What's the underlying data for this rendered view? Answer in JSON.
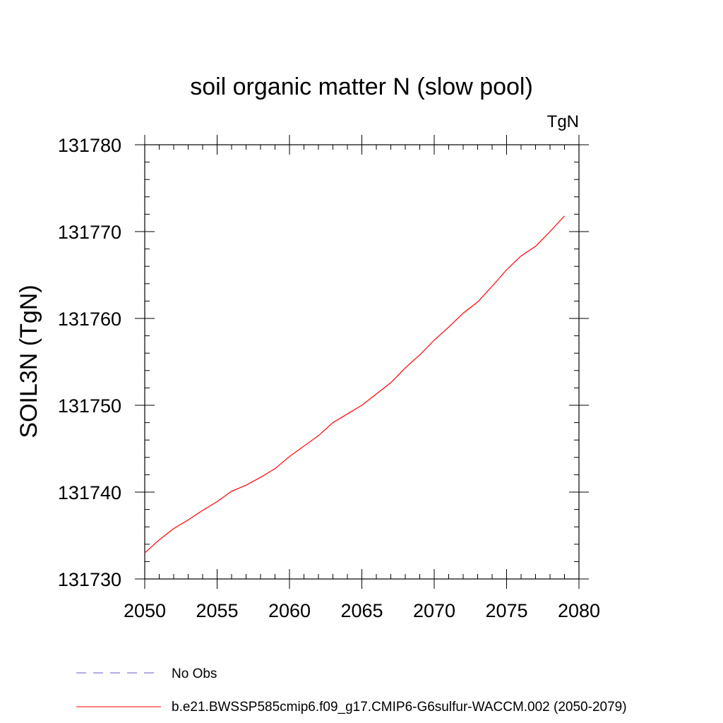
{
  "chart_data": {
    "type": "line",
    "title": "soil organic matter N (slow pool)",
    "units_label": "TgN",
    "ylabel": "SOIL3N  (TgN)",
    "xlabel": "",
    "xlim": [
      2050,
      2080
    ],
    "ylim": [
      131730,
      131780
    ],
    "x_ticks": [
      2050,
      2055,
      2060,
      2065,
      2070,
      2075,
      2080
    ],
    "y_ticks": [
      131730,
      131740,
      131750,
      131760,
      131770,
      131780
    ],
    "x_tick_labels": [
      "2050",
      "2055",
      "2060",
      "2065",
      "2070",
      "2075",
      "2080"
    ],
    "y_tick_labels": [
      "131730",
      "131740",
      "131750",
      "131760",
      "131770",
      "131780"
    ],
    "grid": false,
    "legend_position": "bottom",
    "series": [
      {
        "name": "No Obs",
        "color": "#6a5acd",
        "dash": "dashed",
        "x": [],
        "y": []
      },
      {
        "name": "b.e21.BWSSP585cmip6.f09_g17.CMIP6-G6sulfur-WACCM.002 (2050-2079)",
        "color": "#ff0000",
        "dash": "solid",
        "x": [
          2050,
          2051,
          2052,
          2053,
          2054,
          2055,
          2056,
          2057,
          2058,
          2059,
          2060,
          2061,
          2062,
          2063,
          2064,
          2065,
          2066,
          2067,
          2068,
          2069,
          2070,
          2071,
          2072,
          2073,
          2074,
          2075,
          2076,
          2077,
          2078,
          2079
        ],
        "y": [
          131733.0,
          131734.5,
          131735.8,
          131736.8,
          131737.9,
          131738.9,
          131740.1,
          131740.8,
          131741.7,
          131742.7,
          131744.1,
          131745.3,
          131746.5,
          131748.0,
          131749.0,
          131750.0,
          131751.3,
          131752.6,
          131754.3,
          131755.8,
          131757.5,
          131759.0,
          131760.6,
          131761.9,
          131763.7,
          131765.6,
          131767.2,
          131768.3,
          131770.0,
          131771.8
        ]
      }
    ]
  }
}
